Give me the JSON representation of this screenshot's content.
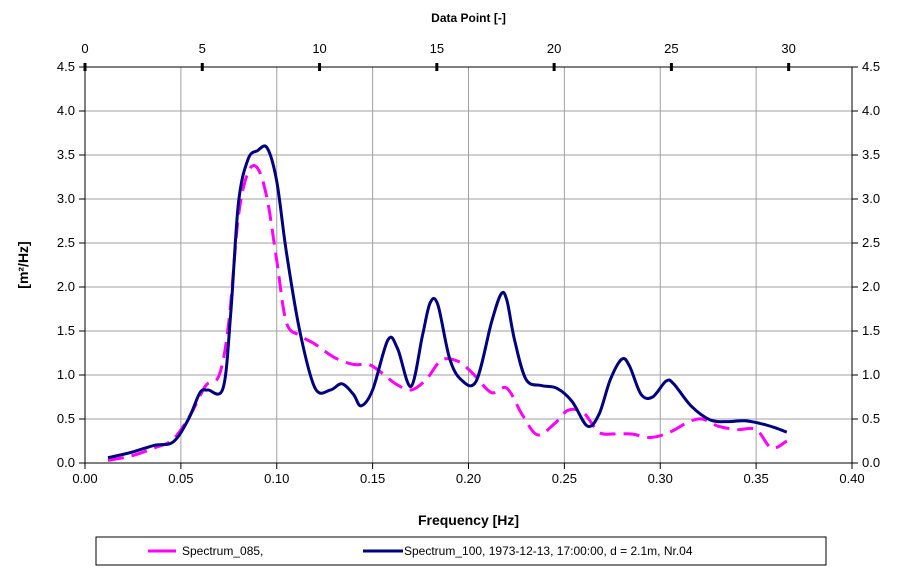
{
  "chart_data": {
    "type": "line",
    "xlabel": "Frequency [Hz]",
    "x2label": "Data Point [-]",
    "ylabel": "[m²/Hz]",
    "xlim": [
      0,
      0.4
    ],
    "x2lim": [
      0,
      32.7
    ],
    "ylim": [
      0,
      4.5
    ],
    "x_ticks": [
      "0.00",
      "0.05",
      "0.10",
      "0.15",
      "0.20",
      "0.25",
      "0.30",
      "0.35",
      "0.40"
    ],
    "x2_ticks": [
      "0",
      "5",
      "10",
      "15",
      "20",
      "25",
      "30"
    ],
    "y_ticks": [
      "0.0",
      "0.5",
      "1.0",
      "1.5",
      "2.0",
      "2.5",
      "3.0",
      "3.5",
      "4.0",
      "4.5"
    ],
    "grid": true,
    "legend_position": "bottom",
    "series": [
      {
        "name": "Spectrum_085,",
        "color": "#ff00ff",
        "dash": "dashed",
        "x": [
          0.012,
          0.024,
          0.036,
          0.046,
          0.055,
          0.063,
          0.07,
          0.075,
          0.08,
          0.085,
          0.09,
          0.095,
          0.1,
          0.105,
          0.112,
          0.12,
          0.13,
          0.14,
          0.148,
          0.155,
          0.162,
          0.17,
          0.178,
          0.186,
          0.195,
          0.203,
          0.212,
          0.22,
          0.228,
          0.236,
          0.245,
          0.252,
          0.26,
          0.268,
          0.276,
          0.285,
          0.295,
          0.305,
          0.315,
          0.322,
          0.33,
          0.34,
          0.35,
          0.358,
          0.366
        ],
        "values": [
          0.03,
          0.08,
          0.17,
          0.27,
          0.55,
          0.88,
          1.0,
          1.6,
          2.8,
          3.3,
          3.35,
          3.0,
          2.3,
          1.6,
          1.45,
          1.35,
          1.2,
          1.12,
          1.12,
          1.02,
          0.9,
          0.83,
          0.95,
          1.17,
          1.15,
          1.0,
          0.8,
          0.85,
          0.55,
          0.32,
          0.45,
          0.6,
          0.57,
          0.35,
          0.33,
          0.33,
          0.29,
          0.35,
          0.47,
          0.5,
          0.42,
          0.38,
          0.38,
          0.17,
          0.25
        ]
      },
      {
        "name": "Spectrum_100, 1973-12-13, 17:00:00, d = 2.1m, Nr.04",
        "color": "#000080",
        "dash": "solid",
        "x": [
          0.012,
          0.024,
          0.036,
          0.046,
          0.054,
          0.06,
          0.064,
          0.072,
          0.076,
          0.08,
          0.085,
          0.09,
          0.095,
          0.1,
          0.105,
          0.112,
          0.12,
          0.128,
          0.134,
          0.14,
          0.144,
          0.15,
          0.158,
          0.163,
          0.17,
          0.176,
          0.18,
          0.184,
          0.19,
          0.196,
          0.204,
          0.212,
          0.217,
          0.22,
          0.224,
          0.23,
          0.238,
          0.246,
          0.254,
          0.262,
          0.268,
          0.274,
          0.28,
          0.284,
          0.29,
          0.296,
          0.303,
          0.307,
          0.316,
          0.326,
          0.335,
          0.344,
          0.352,
          0.36,
          0.366
        ],
        "values": [
          0.06,
          0.12,
          0.2,
          0.24,
          0.5,
          0.8,
          0.83,
          0.85,
          1.7,
          2.95,
          3.45,
          3.55,
          3.58,
          3.2,
          2.4,
          1.5,
          0.85,
          0.83,
          0.9,
          0.78,
          0.65,
          0.83,
          1.4,
          1.3,
          0.87,
          1.45,
          1.82,
          1.8,
          1.2,
          0.95,
          0.93,
          1.6,
          1.92,
          1.85,
          1.4,
          0.95,
          0.88,
          0.85,
          0.7,
          0.42,
          0.55,
          0.95,
          1.18,
          1.1,
          0.78,
          0.75,
          0.93,
          0.9,
          0.65,
          0.49,
          0.47,
          0.48,
          0.45,
          0.4,
          0.35
        ]
      }
    ]
  }
}
